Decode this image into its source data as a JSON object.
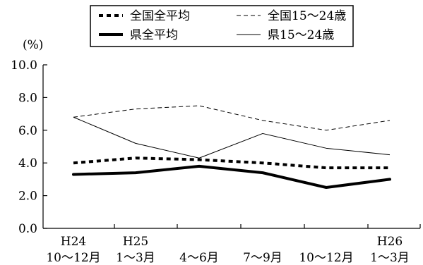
{
  "chart_data": {
    "type": "line",
    "title": "",
    "unit_label": "(%)",
    "ylim": [
      0,
      10
    ],
    "yticks": [
      0,
      2,
      4,
      6,
      8,
      10
    ],
    "ytick_labels": [
      "0.0",
      "2.0",
      "4.0",
      "6.0",
      "8.0",
      "10.0"
    ],
    "categories": [
      "H24 10〜12月",
      "H25 1〜3月",
      "4〜6月",
      "7〜9月",
      "10〜12月",
      "H26 1〜3月"
    ],
    "category_labels": [
      {
        "line1": "H24",
        "line2": "10〜12月"
      },
      {
        "line1": "H25",
        "line2": "1〜3月"
      },
      {
        "line1": "",
        "line2": "4〜6月"
      },
      {
        "line1": "",
        "line2": "7〜9月"
      },
      {
        "line1": "",
        "line2": "10〜12月"
      },
      {
        "line1": "H26",
        "line2": "1〜3月"
      }
    ],
    "series": [
      {
        "name": "全国全平均",
        "values": [
          4.0,
          4.3,
          4.2,
          4.0,
          3.7,
          3.7
        ],
        "style": "dotted-thick"
      },
      {
        "name": "全国15〜24歳",
        "values": [
          6.8,
          7.3,
          7.5,
          6.6,
          6.0,
          6.6
        ],
        "style": "dashed-thin"
      },
      {
        "name": "県全平均",
        "values": [
          3.3,
          3.4,
          3.8,
          3.4,
          2.5,
          3.0
        ],
        "style": "solid-thick"
      },
      {
        "name": "県15〜24歳",
        "values": [
          6.8,
          5.2,
          4.3,
          5.8,
          4.9,
          4.5
        ],
        "style": "solid-thin"
      }
    ],
    "legend": "top",
    "grid": false
  }
}
